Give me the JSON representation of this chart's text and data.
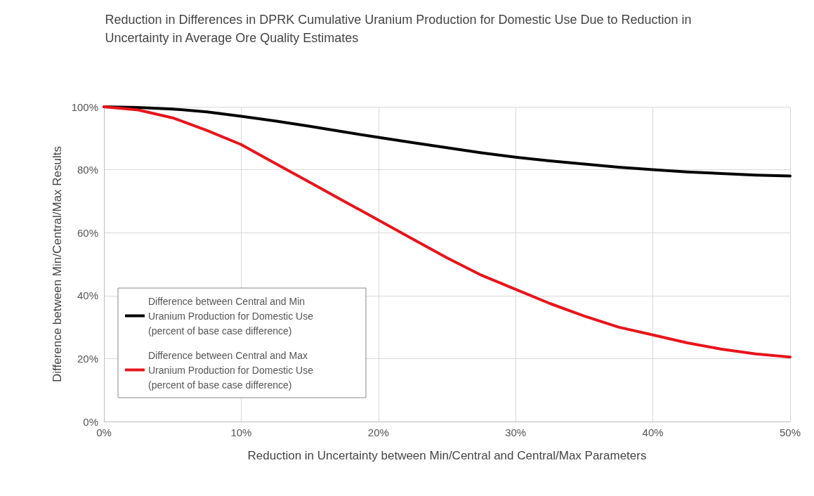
{
  "chart_data": {
    "type": "line",
    "title": "Reduction in Differences in DPRK Cumulative Uranium Production for Domestic Use Due to Reduction in Uncertainty in Average Ore Quality Estimates",
    "xlabel": "Reduction in Uncertainty between Min/Central and Central/Max Parameters",
    "ylabel": "Difference between Min/Central/Max Results",
    "x": [
      0,
      2.5,
      5,
      7.5,
      10,
      12.5,
      15,
      17.5,
      20,
      22.5,
      25,
      27.5,
      30,
      32.5,
      35,
      37.5,
      40,
      42.5,
      45,
      47.5,
      50
    ],
    "series": [
      {
        "name": "Difference between Central and Min Uranium Production for Domestic Use (percent of base case difference)",
        "color": "#000000",
        "values": [
          100,
          99.8,
          99.3,
          98.4,
          97,
          95.5,
          93.8,
          92,
          90.3,
          88.6,
          87,
          85.4,
          84,
          82.8,
          81.8,
          80.8,
          80,
          79.3,
          78.8,
          78.3,
          78
        ]
      },
      {
        "name": "Difference between Central and Max Uranium Production for Domestic Use (percent of base case difference)",
        "color": "#e8141b",
        "values": [
          100,
          99,
          96.5,
          92.5,
          88,
          82,
          76,
          70,
          64,
          58,
          52,
          46.5,
          42,
          37.5,
          33.5,
          30,
          27.5,
          25,
          23,
          21.5,
          20.5
        ]
      }
    ],
    "xlim": [
      0,
      50
    ],
    "xticks": [
      {
        "value": 0,
        "label": "0%"
      },
      {
        "value": 10,
        "label": "10%"
      },
      {
        "value": 20,
        "label": "20%"
      },
      {
        "value": 30,
        "label": "30%"
      },
      {
        "value": 40,
        "label": "40%"
      },
      {
        "value": 50,
        "label": "50%"
      }
    ],
    "ylim": [
      0,
      100
    ],
    "yticks": [
      {
        "value": 0,
        "label": "0%"
      },
      {
        "value": 20,
        "label": "20%"
      },
      {
        "value": 40,
        "label": "40%"
      },
      {
        "value": 60,
        "label": "60%"
      },
      {
        "value": 80,
        "label": "80%"
      },
      {
        "value": 100,
        "label": "100%"
      }
    ],
    "grid": true,
    "legend": "bottom left",
    "marker": "none",
    "line_style": "solid"
  }
}
